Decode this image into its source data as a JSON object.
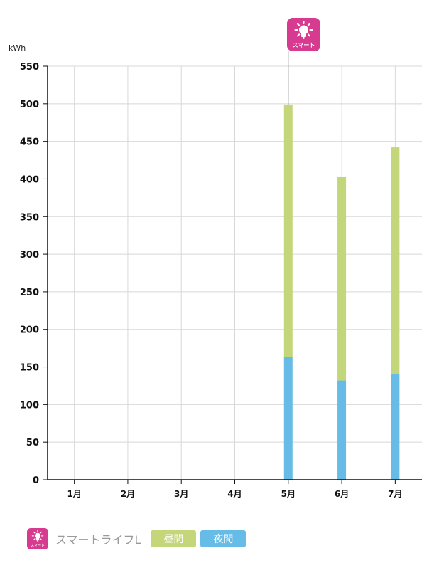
{
  "chart_data": {
    "type": "bar",
    "stacked": true,
    "unit": "kWh",
    "categories": [
      "1月",
      "2月",
      "3月",
      "4月",
      "5月",
      "6月",
      "7月"
    ],
    "series": [
      {
        "name": "夜間",
        "color": "#67bce7",
        "values": [
          0,
          0,
          0,
          0,
          163,
          132,
          141
        ]
      },
      {
        "name": "昼間",
        "color": "#c3d67a",
        "values": [
          0,
          0,
          0,
          0,
          336,
          271,
          301
        ]
      }
    ],
    "ylim": [
      0,
      550
    ],
    "yticks": [
      0,
      50,
      100,
      150,
      200,
      250,
      300,
      350,
      400,
      450,
      500,
      550
    ],
    "grid": true,
    "marker": {
      "category": "5月",
      "icon": "smart-bulb-icon",
      "label": "スマート"
    }
  },
  "legend": {
    "plan_icon": "smart-bulb-icon",
    "plan_icon_label": "スマート",
    "plan_name": "スマートライフL",
    "day_label": "昼間",
    "night_label": "夜間",
    "day_color": "#c3d67a",
    "night_color": "#67bce7",
    "badge_color": "#d63b8f"
  }
}
